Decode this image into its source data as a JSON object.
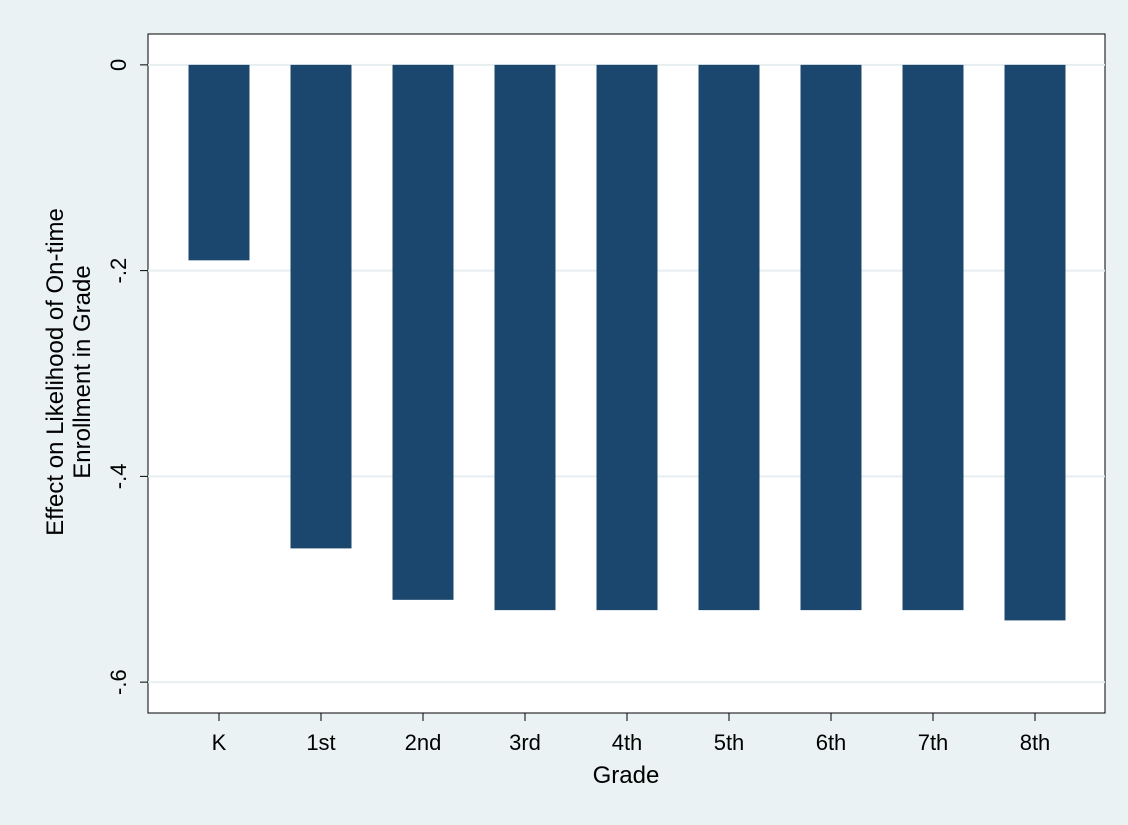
{
  "chart_data": {
    "type": "bar",
    "categories": [
      "K",
      "1st",
      "2nd",
      "3rd",
      "4th",
      "5th",
      "6th",
      "7th",
      "8th"
    ],
    "values": [
      -0.19,
      -0.47,
      -0.52,
      -0.53,
      -0.53,
      -0.53,
      -0.53,
      -0.53,
      -0.54
    ],
    "xlabel": "Grade",
    "ylabel_lines": [
      "Effect on Likelihood of On-time",
      "Enrollment in Grade"
    ],
    "ylim": [
      -0.63,
      0.03
    ],
    "yticks": [
      0,
      -0.2,
      -0.4,
      -0.6
    ],
    "ytick_labels": [
      "0",
      "-.2",
      "-.4",
      "-.6"
    ],
    "grid": true,
    "colors": {
      "bar": "#1b476e",
      "background": "#eaf2f3",
      "plot_background": "#ffffff",
      "grid": "#e6eef0"
    }
  }
}
